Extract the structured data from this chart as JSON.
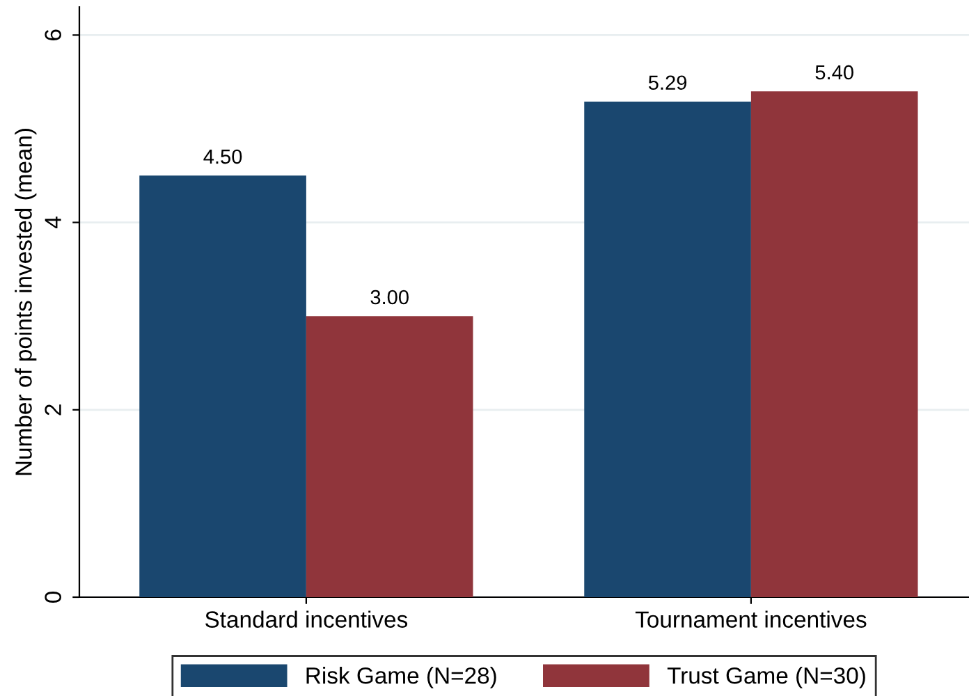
{
  "chart_data": {
    "type": "bar",
    "ylabel": "Number of points invested (mean)",
    "categories": [
      "Standard incentives",
      "Tournament incentives"
    ],
    "series": [
      {
        "name": "Risk Game (N=28)",
        "color": "#1a476f",
        "values": [
          4.5,
          5.29
        ],
        "value_labels": [
          "4.50",
          "5.29"
        ]
      },
      {
        "name": "Trust Game (N=30)",
        "color": "#90353b",
        "values": [
          3.0,
          5.4
        ],
        "value_labels": [
          "3.00",
          "5.40"
        ]
      }
    ],
    "ylim": [
      0,
      6.3
    ],
    "yticks": [
      0,
      2,
      4,
      6
    ],
    "grid": "y",
    "legend": "bottom"
  }
}
